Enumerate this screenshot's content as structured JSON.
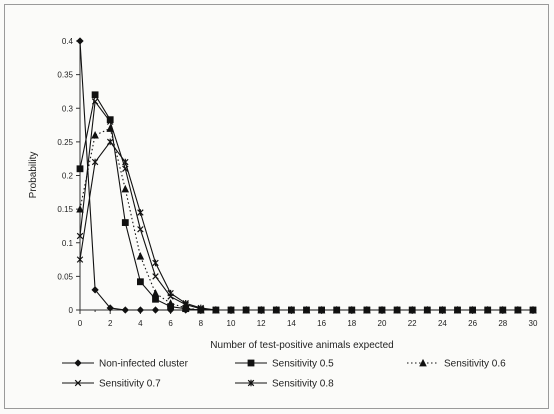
{
  "chart_data": {
    "type": "line",
    "title": "",
    "xlabel": "Number of test-positive animals expected",
    "ylabel": "Probability",
    "xlim": [
      0,
      30
    ],
    "ylim": [
      0,
      0.4
    ],
    "x_ticks": [
      "0",
      "2",
      "4",
      "6",
      "8",
      "10",
      "12",
      "14",
      "16",
      "18",
      "20",
      "22",
      "24",
      "26",
      "28",
      "30"
    ],
    "y_ticks": [
      "0",
      "0.05",
      "0.1",
      "0.15",
      "0.2",
      "0.25",
      "0.3",
      "0.35",
      "0.4"
    ],
    "y_tick_values": [
      0,
      0.05,
      0.1,
      0.15,
      0.2,
      0.25,
      0.3,
      0.35,
      0.4
    ],
    "grid": false,
    "legend_position": "bottom",
    "x": [
      0,
      1,
      2,
      3,
      4,
      5,
      6,
      7,
      8,
      9,
      10,
      11,
      12,
      13,
      14,
      15,
      16,
      17,
      18,
      19,
      20,
      21,
      22,
      23,
      24,
      25,
      26,
      27,
      28,
      29,
      30
    ],
    "series": [
      {
        "name": "Non-infected cluster",
        "marker": "diamond",
        "dash": "solid",
        "values": [
          0.4,
          0.03,
          0.003,
          0,
          0,
          0,
          0,
          0,
          0,
          0,
          0,
          0,
          0,
          0,
          0,
          0,
          0,
          0,
          0,
          0,
          0,
          0,
          0,
          0,
          0,
          0,
          0,
          0,
          0,
          0,
          0
        ]
      },
      {
        "name": "Sensitivity 0.5",
        "marker": "square",
        "dash": "solid",
        "values": [
          0.21,
          0.32,
          0.283,
          0.13,
          0.042,
          0.016,
          0.005,
          0.002,
          0,
          0,
          0,
          0,
          0,
          0,
          0,
          0,
          0,
          0,
          0,
          0,
          0,
          0,
          0,
          0,
          0,
          0,
          0,
          0,
          0,
          0,
          0
        ]
      },
      {
        "name": "Sensitivity 0.6",
        "marker": "triangle",
        "dash": "dotted",
        "values": [
          0.15,
          0.26,
          0.27,
          0.18,
          0.08,
          0.025,
          0.01,
          0.003,
          0,
          0,
          0,
          0,
          0,
          0,
          0,
          0,
          0,
          0,
          0,
          0,
          0,
          0,
          0,
          0,
          0,
          0,
          0,
          0,
          0,
          0,
          0
        ]
      },
      {
        "name": "Sensitivity 0.7",
        "marker": "x",
        "dash": "solid",
        "values": [
          0.11,
          0.31,
          0.28,
          0.21,
          0.12,
          0.05,
          0.02,
          0.008,
          0.002,
          0,
          0,
          0,
          0,
          0,
          0,
          0,
          0,
          0,
          0,
          0,
          0,
          0,
          0,
          0,
          0,
          0,
          0,
          0,
          0,
          0,
          0
        ]
      },
      {
        "name": "Sensitivity 0.8",
        "marker": "star",
        "dash": "solid",
        "values": [
          0.075,
          0.22,
          0.25,
          0.22,
          0.145,
          0.07,
          0.025,
          0.01,
          0.003,
          0,
          0,
          0,
          0,
          0,
          0,
          0,
          0,
          0,
          0,
          0,
          0,
          0,
          0,
          0,
          0,
          0,
          0,
          0,
          0,
          0,
          0
        ]
      }
    ]
  }
}
